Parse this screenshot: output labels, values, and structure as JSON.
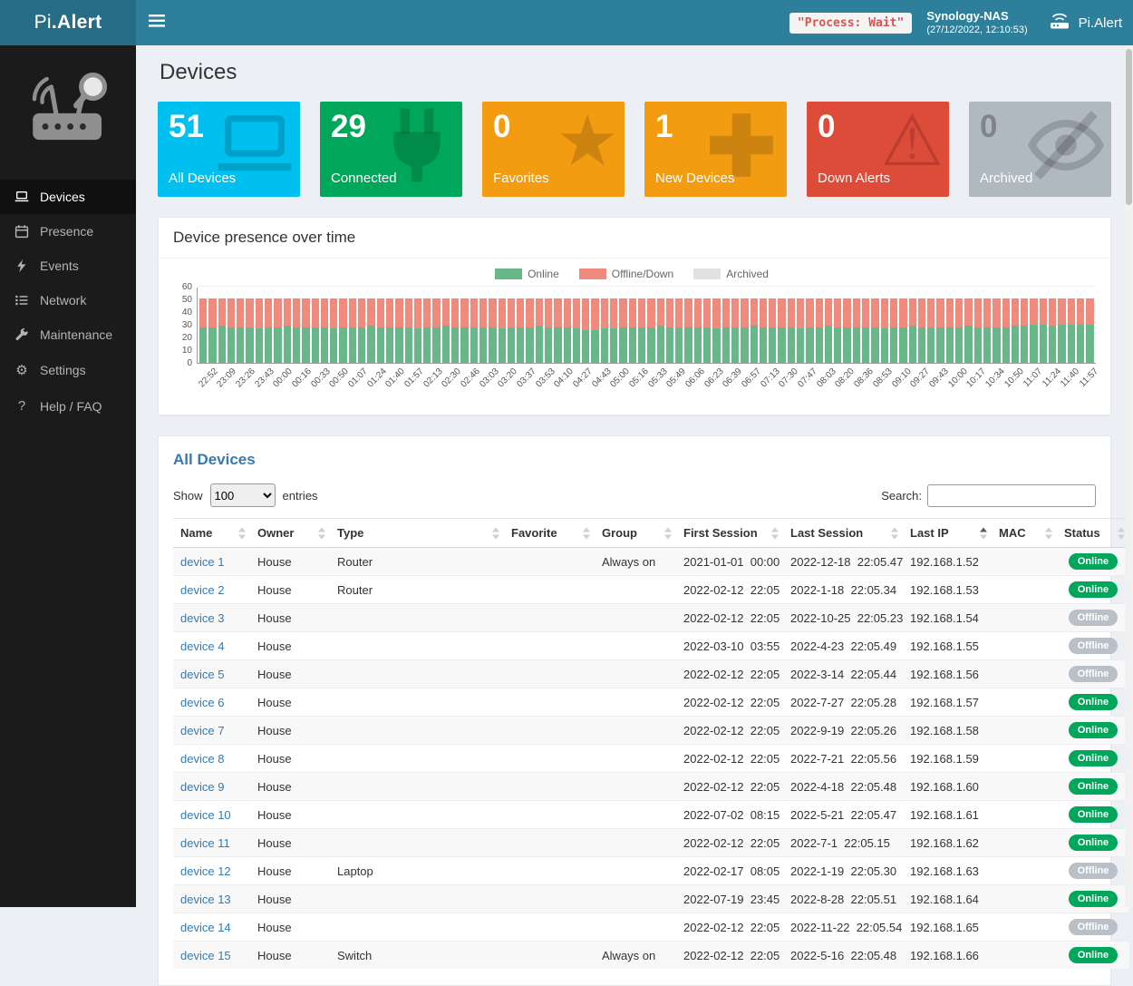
{
  "header": {
    "logo_light": "Pi",
    "logo_bold": ".Alert",
    "process_state": "\"Process: Wait\"",
    "host": "Synology-NAS",
    "timestamp": "(27/12/2022, 12:10:53)",
    "brand": "Pi.Alert"
  },
  "sidebar": {
    "items": [
      {
        "label": "Devices",
        "icon": "laptop",
        "active": true
      },
      {
        "label": "Presence",
        "icon": "calendar",
        "active": false
      },
      {
        "label": "Events",
        "icon": "bolt",
        "active": false
      },
      {
        "label": "Network",
        "icon": "list",
        "active": false
      },
      {
        "label": "Maintenance",
        "icon": "wrench",
        "active": false
      },
      {
        "label": "Settings",
        "icon": "gear",
        "active": false
      },
      {
        "label": "Help / FAQ",
        "icon": "question",
        "active": false
      }
    ]
  },
  "page": {
    "title": "Devices"
  },
  "summary_boxes": [
    {
      "value": "51",
      "label": "All Devices",
      "color": "#00c0ef",
      "icon": "laptop",
      "gray": false
    },
    {
      "value": "29",
      "label": "Connected",
      "color": "#00a65a",
      "icon": "plug",
      "gray": false
    },
    {
      "value": "0",
      "label": "Favorites",
      "color": "#f39c12",
      "icon": "star",
      "gray": false
    },
    {
      "value": "1",
      "label": "New Devices",
      "color": "#f39c12",
      "icon": "plus",
      "gray": false
    },
    {
      "value": "0",
      "label": "Down Alerts",
      "color": "#dd4b39",
      "icon": "warning",
      "gray": false
    },
    {
      "value": "0",
      "label": "Archived",
      "color": "#b0b8c0",
      "icon": "eye-slash",
      "gray": true
    }
  ],
  "presence_panel": {
    "title": "Device presence over time"
  },
  "chart_data": {
    "type": "bar",
    "stacked": true,
    "title": "Device presence over time",
    "ylim": [
      0,
      60
    ],
    "yticks": [
      0,
      10,
      20,
      30,
      40,
      50,
      60
    ],
    "legend": [
      {
        "label": "Online",
        "color": "#68b789"
      },
      {
        "label": "Offline/Down",
        "color": "#f08a7d"
      },
      {
        "label": "Archived",
        "color": "#e2e2e2"
      }
    ],
    "x_labels": [
      "22:52",
      "23:09",
      "23:26",
      "23:43",
      "00:00",
      "00:16",
      "00:33",
      "00:50",
      "01:07",
      "01:24",
      "01:40",
      "01:57",
      "02:13",
      "02:30",
      "02:46",
      "03:03",
      "03:20",
      "03:37",
      "03:53",
      "04:10",
      "04:27",
      "04:43",
      "05:00",
      "05:16",
      "05:33",
      "05:49",
      "06:06",
      "06:23",
      "06:39",
      "06:57",
      "07:13",
      "07:30",
      "07:47",
      "08:03",
      "08:20",
      "08:36",
      "08:53",
      "09:10",
      "09:27",
      "09:43",
      "10:00",
      "10:17",
      "10:34",
      "10:50",
      "11:07",
      "11:24",
      "11:40",
      "11:57"
    ],
    "bars_per_label": 2,
    "series": [
      {
        "name": "Online",
        "color": "#68b789",
        "values": [
          28,
          28,
          29,
          28,
          28,
          28,
          27,
          28,
          28,
          29,
          28,
          28,
          28,
          28,
          27,
          28,
          28,
          28,
          29,
          28,
          28,
          28,
          28,
          27,
          28,
          28,
          29,
          28,
          28,
          28,
          28,
          28,
          27,
          28,
          28,
          28,
          29,
          28,
          28,
          28,
          27,
          26,
          26,
          27,
          27,
          28,
          28,
          28,
          28,
          29,
          28,
          28,
          28,
          28,
          28,
          27,
          28,
          28,
          28,
          29,
          28,
          28,
          28,
          28,
          27,
          28,
          28,
          29,
          28,
          28,
          28,
          28,
          28,
          27,
          28,
          28,
          29,
          28,
          28,
          28,
          28,
          28,
          29,
          28,
          28,
          28,
          28,
          29,
          29,
          30,
          30,
          29,
          30,
          30,
          30,
          30
        ]
      },
      {
        "name": "Offline/Down",
        "color": "#f08a7d",
        "values": [
          23,
          23,
          22,
          23,
          23,
          23,
          24,
          23,
          23,
          22,
          23,
          23,
          23,
          23,
          24,
          23,
          23,
          23,
          22,
          23,
          23,
          23,
          23,
          24,
          23,
          23,
          22,
          23,
          23,
          23,
          23,
          23,
          24,
          23,
          23,
          23,
          22,
          23,
          23,
          23,
          24,
          25,
          25,
          24,
          24,
          23,
          23,
          23,
          23,
          22,
          23,
          23,
          23,
          23,
          23,
          24,
          23,
          23,
          23,
          22,
          23,
          23,
          23,
          23,
          24,
          23,
          23,
          22,
          23,
          23,
          23,
          23,
          23,
          24,
          23,
          23,
          22,
          23,
          23,
          23,
          23,
          23,
          22,
          23,
          23,
          23,
          23,
          22,
          22,
          21,
          21,
          22,
          21,
          21,
          21,
          21
        ]
      }
    ]
  },
  "devices_panel": {
    "title": "All Devices",
    "show_label": "Show",
    "page_size": "100",
    "entries_label": "entries",
    "search_label": "Search:",
    "columns": [
      {
        "label": "Name",
        "sorted": null
      },
      {
        "label": "Owner",
        "sorted": null
      },
      {
        "label": "Type",
        "sorted": null
      },
      {
        "label": "Favorite",
        "sorted": null
      },
      {
        "label": "Group",
        "sorted": null
      },
      {
        "label": "First Session",
        "sorted": null
      },
      {
        "label": "Last Session",
        "sorted": null
      },
      {
        "label": "Last IP",
        "sorted": "asc"
      },
      {
        "label": "MAC",
        "sorted": null
      },
      {
        "label": "Status",
        "sorted": null
      }
    ],
    "rows": [
      {
        "name": "device 1",
        "owner": "House",
        "type": "Router",
        "favorite": "",
        "group": "Always on",
        "first_date": "2021-01-01",
        "first_time": "00:00",
        "last_date": "2022-12-18",
        "last_time": "22:05.47",
        "ip": "192.168.1.52",
        "mac": "",
        "status": "Online"
      },
      {
        "name": "device 2",
        "owner": "House",
        "type": "Router",
        "favorite": "",
        "group": "",
        "first_date": "2022-02-12",
        "first_time": "22:05",
        "last_date": "2022-1-18",
        "last_time": "22:05.34",
        "ip": "192.168.1.53",
        "mac": "",
        "status": "Online"
      },
      {
        "name": "device 3",
        "owner": "House",
        "type": "",
        "favorite": "",
        "group": "",
        "first_date": "2022-02-12",
        "first_time": "22:05",
        "last_date": "2022-10-25",
        "last_time": "22:05.23",
        "ip": "192.168.1.54",
        "mac": "",
        "status": "Offline"
      },
      {
        "name": "device 4",
        "owner": "House",
        "type": "",
        "favorite": "",
        "group": "",
        "first_date": "2022-03-10",
        "first_time": "03:55",
        "last_date": "2022-4-23",
        "last_time": "22:05.49",
        "ip": "192.168.1.55",
        "mac": "",
        "status": "Offline"
      },
      {
        "name": "device 5",
        "owner": "House",
        "type": "",
        "favorite": "",
        "group": "",
        "first_date": "2022-02-12",
        "first_time": "22:05",
        "last_date": "2022-3-14",
        "last_time": "22:05.44",
        "ip": "192.168.1.56",
        "mac": "",
        "status": "Offline"
      },
      {
        "name": "device 6",
        "owner": "House",
        "type": "",
        "favorite": "",
        "group": "",
        "first_date": "2022-02-12",
        "first_time": "22:05",
        "last_date": "2022-7-27",
        "last_time": "22:05.28",
        "ip": "192.168.1.57",
        "mac": "",
        "status": "Online"
      },
      {
        "name": "device 7",
        "owner": "House",
        "type": "",
        "favorite": "",
        "group": "",
        "first_date": "2022-02-12",
        "first_time": "22:05",
        "last_date": "2022-9-19",
        "last_time": "22:05.26",
        "ip": "192.168.1.58",
        "mac": "",
        "status": "Online"
      },
      {
        "name": "device 8",
        "owner": "House",
        "type": "",
        "favorite": "",
        "group": "",
        "first_date": "2022-02-12",
        "first_time": "22:05",
        "last_date": "2022-7-21",
        "last_time": "22:05.56",
        "ip": "192.168.1.59",
        "mac": "",
        "status": "Online"
      },
      {
        "name": "device 9",
        "owner": "House",
        "type": "",
        "favorite": "",
        "group": "",
        "first_date": "2022-02-12",
        "first_time": "22:05",
        "last_date": "2022-4-18",
        "last_time": "22:05.48",
        "ip": "192.168.1.60",
        "mac": "",
        "status": "Online"
      },
      {
        "name": "device 10",
        "owner": "House",
        "type": "",
        "favorite": "",
        "group": "",
        "first_date": "2022-07-02",
        "first_time": "08:15",
        "last_date": "2022-5-21",
        "last_time": "22:05.47",
        "ip": "192.168.1.61",
        "mac": "",
        "status": "Online"
      },
      {
        "name": "device 11",
        "owner": "House",
        "type": "",
        "favorite": "",
        "group": "",
        "first_date": "2022-02-12",
        "first_time": "22:05",
        "last_date": "2022-7-1",
        "last_time": "22:05.15",
        "ip": "192.168.1.62",
        "mac": "",
        "status": "Online"
      },
      {
        "name": "device 12",
        "owner": "House",
        "type": "Laptop",
        "favorite": "",
        "group": "",
        "first_date": "2022-02-17",
        "first_time": "08:05",
        "last_date": "2022-1-19",
        "last_time": "22:05.30",
        "ip": "192.168.1.63",
        "mac": "",
        "status": "Offline"
      },
      {
        "name": "device 13",
        "owner": "House",
        "type": "",
        "favorite": "",
        "group": "",
        "first_date": "2022-07-19",
        "first_time": "23:45",
        "last_date": "2022-8-28",
        "last_time": "22:05.51",
        "ip": "192.168.1.64",
        "mac": "",
        "status": "Online"
      },
      {
        "name": "device 14",
        "owner": "House",
        "type": "",
        "favorite": "",
        "group": "",
        "first_date": "2022-02-12",
        "first_time": "22:05",
        "last_date": "2022-11-22",
        "last_time": "22:05.54",
        "ip": "192.168.1.65",
        "mac": "",
        "status": "Offline"
      },
      {
        "name": "device 15",
        "owner": "House",
        "type": "Switch",
        "favorite": "",
        "group": "Always on",
        "first_date": "2022-02-12",
        "first_time": "22:05",
        "last_date": "2022-5-16",
        "last_time": "22:05.48",
        "ip": "192.168.1.66",
        "mac": "",
        "status": "Online"
      }
    ]
  }
}
